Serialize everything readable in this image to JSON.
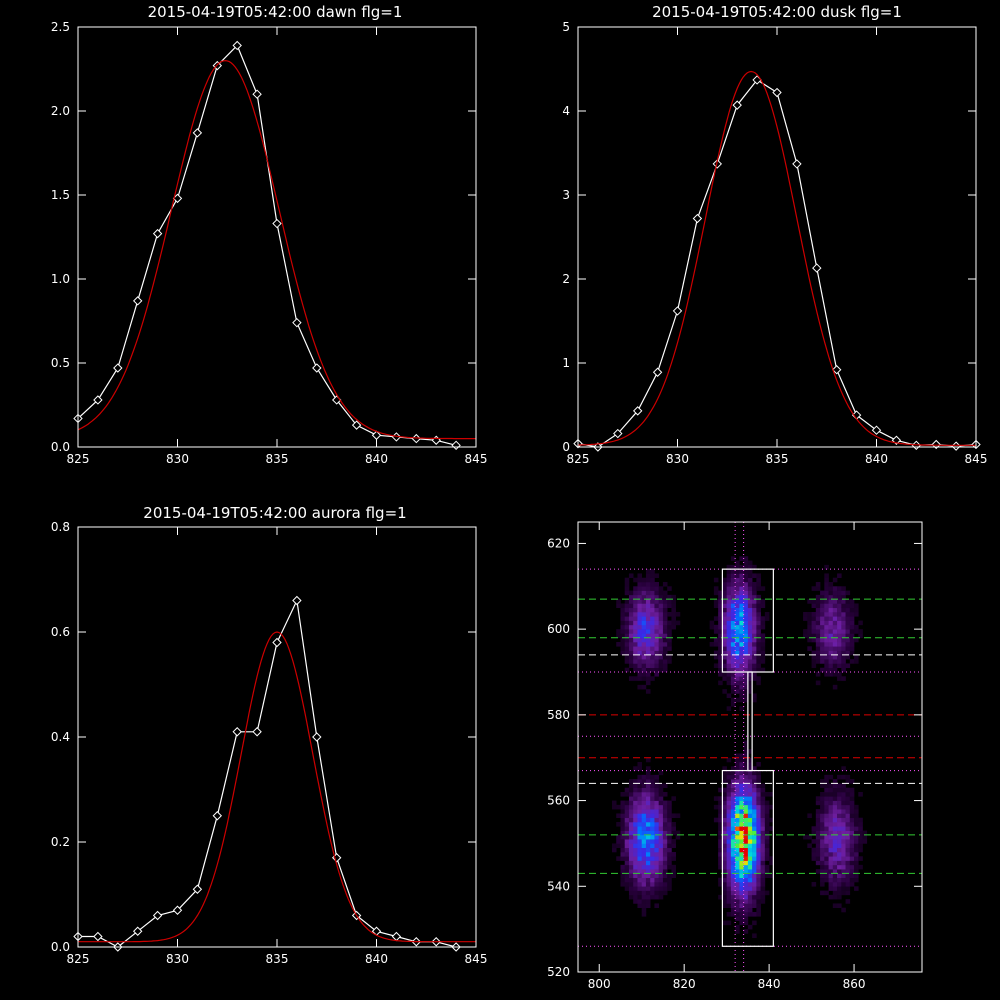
{
  "chart_data": [
    {
      "type": "line",
      "title": "2015-04-19T05:42:00 dawn flg=1",
      "xlim": [
        825,
        845
      ],
      "ylim": [
        0,
        2.5
      ],
      "xticks": [
        825,
        830,
        835,
        840,
        845
      ],
      "yticks": [
        0.0,
        0.5,
        1.0,
        1.5,
        2.0,
        2.5
      ],
      "ytick_labels": [
        "0.0",
        "0.5",
        "1.0",
        "1.5",
        "2.0",
        "2.5"
      ],
      "series": [
        {
          "color": "#ffffff",
          "marker": "diamond",
          "x": [
            825,
            826,
            827,
            828,
            829,
            830,
            831,
            832,
            833,
            834,
            835,
            836,
            837,
            838,
            839,
            840,
            841,
            842,
            843,
            844
          ],
          "y": [
            0.17,
            0.28,
            0.47,
            0.87,
            1.27,
            1.48,
            1.87,
            2.27,
            2.39,
            2.1,
            1.33,
            0.74,
            0.47,
            0.28,
            0.13,
            0.07,
            0.06,
            0.05,
            0.04,
            0.01
          ]
        },
        {
          "color": "#cc0000",
          "marker": "none",
          "fit": "gaussian",
          "amplitude": 2.25,
          "center": 832.4,
          "sigma": 2.7,
          "offset": 0.05
        }
      ]
    },
    {
      "type": "line",
      "title": "2015-04-19T05:42:00 dusk flg=1",
      "xlim": [
        825,
        845
      ],
      "ylim": [
        0,
        5
      ],
      "xticks": [
        825,
        830,
        835,
        840,
        845
      ],
      "yticks": [
        0,
        1,
        2,
        3,
        4,
        5
      ],
      "ytick_labels": [
        "0",
        "1",
        "2",
        "3",
        "4",
        "5"
      ],
      "series": [
        {
          "color": "#ffffff",
          "marker": "diamond",
          "x": [
            825,
            826,
            827,
            828,
            829,
            830,
            831,
            832,
            833,
            834,
            835,
            836,
            837,
            838,
            839,
            840,
            841,
            842,
            843,
            844,
            845
          ],
          "y": [
            0.04,
            0.0,
            0.16,
            0.43,
            0.89,
            1.62,
            2.72,
            3.37,
            4.07,
            4.37,
            4.22,
            3.37,
            2.13,
            0.92,
            0.38,
            0.2,
            0.08,
            0.02,
            0.03,
            0.01,
            0.03
          ]
        },
        {
          "color": "#cc0000",
          "marker": "none",
          "fit": "gaussian",
          "amplitude": 4.45,
          "center": 833.7,
          "sigma": 2.3,
          "offset": 0.02
        }
      ]
    },
    {
      "type": "line",
      "title": "2015-04-19T05:42:00 aurora flg=1",
      "xlim": [
        825,
        845
      ],
      "ylim": [
        0,
        0.8
      ],
      "xticks": [
        825,
        830,
        835,
        840,
        845
      ],
      "yticks": [
        0.0,
        0.2,
        0.4,
        0.6,
        0.8
      ],
      "ytick_labels": [
        "0.0",
        "0.2",
        "0.4",
        "0.6",
        "0.8"
      ],
      "series": [
        {
          "color": "#ffffff",
          "marker": "diamond",
          "x": [
            825,
            826,
            827,
            828,
            829,
            830,
            831,
            832,
            833,
            834,
            835,
            836,
            837,
            838,
            839,
            840,
            841,
            842,
            843,
            844
          ],
          "y": [
            0.02,
            0.02,
            0.0,
            0.03,
            0.06,
            0.07,
            0.11,
            0.25,
            0.41,
            0.41,
            0.58,
            0.66,
            0.4,
            0.17,
            0.06,
            0.03,
            0.02,
            0.01,
            0.01,
            0.0
          ]
        },
        {
          "color": "#cc0000",
          "marker": "none",
          "fit": "gaussian",
          "amplitude": 0.59,
          "center": 835.0,
          "sigma": 1.8,
          "offset": 0.01
        }
      ]
    },
    {
      "type": "heatmap",
      "xlim": [
        795,
        876
      ],
      "ylim": [
        520,
        625
      ],
      "xticks": [
        800,
        820,
        840,
        860
      ],
      "yticks": [
        520,
        540,
        560,
        580,
        600,
        620
      ],
      "colormap": "rainbow-on-black",
      "intensity_blobs": [
        {
          "x": 811,
          "y": 600,
          "sx": 3,
          "sy": 6,
          "amp": 0.38
        },
        {
          "x": 833,
          "y": 600,
          "sx": 2.5,
          "sy": 7,
          "amp": 0.6
        },
        {
          "x": 855,
          "y": 600,
          "sx": 3,
          "sy": 6,
          "amp": 0.25
        },
        {
          "x": 811,
          "y": 551,
          "sx": 3,
          "sy": 7,
          "amp": 0.55
        },
        {
          "x": 834,
          "y": 551,
          "sx": 2.5,
          "sy": 8,
          "amp": 1.0
        },
        {
          "x": 856,
          "y": 551,
          "sx": 3,
          "sy": 7,
          "amp": 0.3
        }
      ],
      "boxes": [
        {
          "color": "#ffffff",
          "style": "solid",
          "x0": 829,
          "x1": 841,
          "y0": 590,
          "y1": 614
        },
        {
          "color": "#ffffff",
          "style": "solid",
          "x0": 829,
          "x1": 841,
          "y0": 526,
          "y1": 567
        },
        {
          "color": "#ffffff",
          "style": "solid",
          "x0": 835,
          "x1": 836,
          "y0": 567,
          "y1": 590
        }
      ],
      "hlines": [
        {
          "y": 614,
          "color": "#ff55ff",
          "style": "dotted"
        },
        {
          "y": 607,
          "color": "#33cc33",
          "style": "dashed"
        },
        {
          "y": 598,
          "color": "#33cc33",
          "style": "dashed"
        },
        {
          "y": 594,
          "color": "#ffffff",
          "style": "dashed"
        },
        {
          "y": 590,
          "color": "#ff55ff",
          "style": "dotted"
        },
        {
          "y": 580,
          "color": "#dd0000",
          "style": "dashed"
        },
        {
          "y": 575,
          "color": "#ff55ff",
          "style": "dotted"
        },
        {
          "y": 570,
          "color": "#dd0000",
          "style": "dashed"
        },
        {
          "y": 567,
          "color": "#ff55ff",
          "style": "dotted"
        },
        {
          "y": 564,
          "color": "#ffffff",
          "style": "dashed"
        },
        {
          "y": 552,
          "color": "#33cc33",
          "style": "dashed"
        },
        {
          "y": 543,
          "color": "#33cc33",
          "style": "dashed"
        },
        {
          "y": 526,
          "color": "#ff55ff",
          "style": "dotted"
        }
      ],
      "vlines": [
        {
          "x": 832,
          "color": "#ff55ff",
          "style": "dotted"
        },
        {
          "x": 834,
          "color": "#ff55ff",
          "style": "dotted"
        }
      ]
    }
  ]
}
